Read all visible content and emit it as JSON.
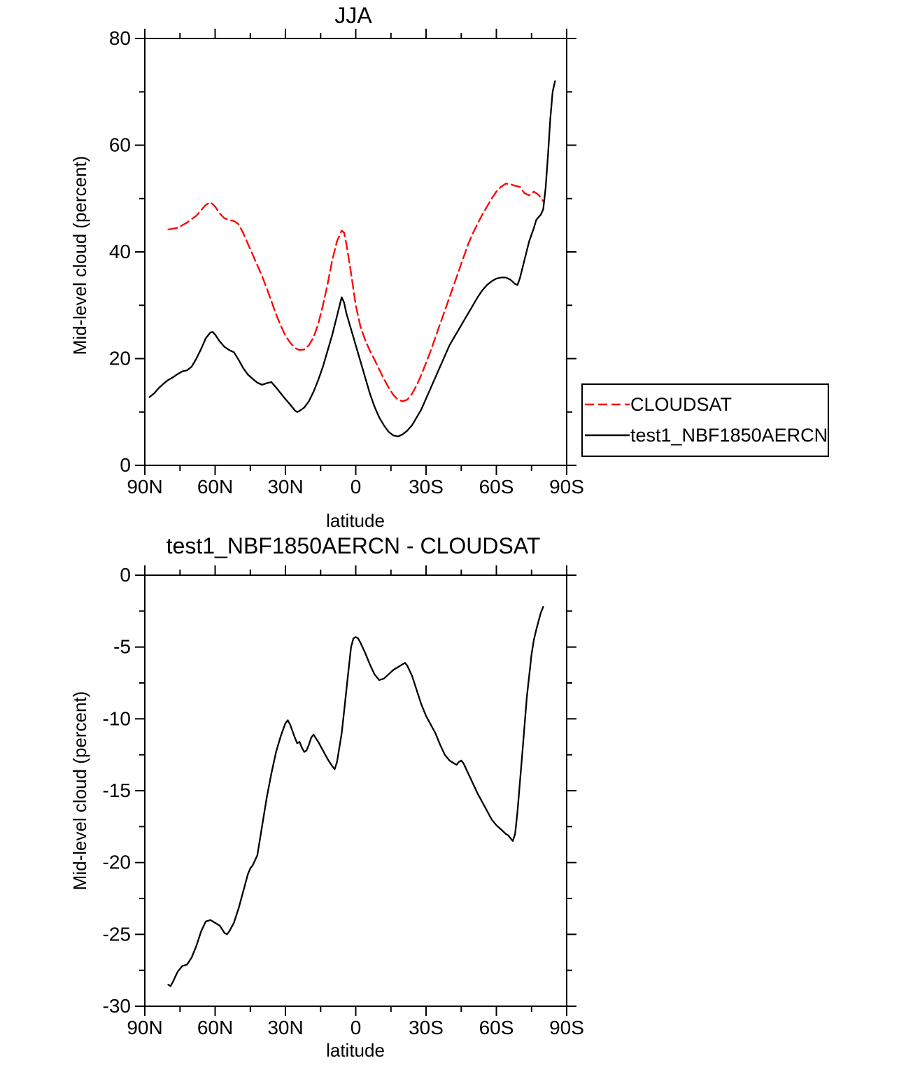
{
  "figure": {
    "background": "#ffffff",
    "frame_color": "#000000"
  },
  "chart_data": [
    {
      "type": "line",
      "title": "JJA",
      "xlabel": "latitude",
      "ylabel": "Mid-level cloud (percent)",
      "xlim": [
        90,
        -90
      ],
      "ylim": [
        0,
        80
      ],
      "grid": false,
      "xticks": {
        "values": [
          90,
          60,
          30,
          0,
          -30,
          -60,
          -90
        ],
        "labels": [
          "90N",
          "60N",
          "30N",
          "0",
          "30S",
          "60S",
          "90S"
        ],
        "minor": [
          75,
          45,
          15,
          -15,
          -45,
          -75
        ]
      },
      "yticks": {
        "values": [
          0,
          20,
          40,
          60,
          80
        ],
        "labels": [
          "0",
          "20",
          "40",
          "60",
          "80"
        ],
        "minor": [
          10,
          30,
          50,
          70
        ]
      },
      "legend": {
        "position": "right-outside",
        "border": true,
        "entries": [
          "CLOUDSAT",
          "test1_NBF1850AERCN"
        ]
      },
      "series": [
        {
          "name": "CLOUDSAT",
          "color": "#ff0000",
          "dash": true,
          "x": [
            80,
            76,
            72,
            68,
            66,
            64,
            62,
            60,
            58,
            56,
            54,
            52,
            50,
            48,
            46,
            44,
            42,
            40,
            38,
            36,
            34,
            32,
            30,
            28,
            26,
            24,
            22,
            20,
            18,
            16,
            14,
            12,
            10,
            8,
            6,
            5,
            4,
            2,
            0,
            -2,
            -4,
            -6,
            -8,
            -10,
            -12,
            -14,
            -16,
            -18,
            -20,
            -22,
            -24,
            -26,
            -28,
            -30,
            -32,
            -34,
            -36,
            -38,
            -40,
            -42,
            -44,
            -46,
            -48,
            -50,
            -52,
            -54,
            -56,
            -58,
            -60,
            -62,
            -64,
            -66,
            -68,
            -70,
            -72,
            -74,
            -76,
            -78,
            -80
          ],
          "y": [
            44.2,
            44.5,
            45.5,
            46.8,
            47.8,
            48.8,
            49.3,
            48.5,
            47.2,
            46.3,
            46.0,
            45.8,
            45.2,
            43.5,
            41.5,
            39.5,
            37.5,
            35.5,
            33.2,
            30.8,
            28.3,
            26.2,
            24.3,
            23.0,
            22.0,
            21.6,
            21.7,
            22.5,
            24.0,
            26.5,
            30.0,
            34.0,
            38.5,
            42.0,
            44.0,
            43.6,
            41.5,
            36.0,
            30.0,
            26.0,
            23.5,
            21.5,
            19.8,
            18.0,
            16.2,
            14.6,
            13.2,
            12.3,
            12.0,
            12.3,
            13.4,
            15.0,
            17.0,
            19.2,
            21.5,
            24.0,
            26.5,
            29.0,
            31.5,
            34.0,
            36.5,
            39.0,
            41.5,
            43.5,
            45.3,
            47.0,
            48.5,
            50.0,
            51.3,
            52.2,
            52.8,
            52.7,
            52.4,
            52.2,
            51.0,
            50.6,
            51.3,
            50.7,
            49.5
          ]
        },
        {
          "name": "test1_NBF1850AERCN",
          "color": "#000000",
          "dash": false,
          "x": [
            88,
            86,
            84,
            82,
            80,
            78,
            76,
            74,
            72,
            70,
            68,
            66,
            64,
            62,
            61,
            60,
            58,
            56,
            54,
            52,
            50,
            48,
            46,
            44,
            42,
            40,
            38,
            36,
            34,
            32,
            30,
            28,
            26,
            25,
            24,
            22,
            20,
            18,
            16,
            14,
            12,
            10,
            8,
            6,
            5,
            4,
            2,
            0,
            -2,
            -4,
            -6,
            -8,
            -10,
            -12,
            -14,
            -16,
            -18,
            -20,
            -22,
            -24,
            -26,
            -28,
            -30,
            -32,
            -34,
            -36,
            -38,
            -40,
            -42,
            -44,
            -46,
            -48,
            -50,
            -52,
            -54,
            -56,
            -58,
            -60,
            -62,
            -64,
            -66,
            -68,
            -69,
            -70,
            -72,
            -74,
            -76,
            -77,
            -78,
            -79,
            -80,
            -81,
            -82,
            -83,
            -84,
            -85
          ],
          "y": [
            12.8,
            13.5,
            14.5,
            15.3,
            16.0,
            16.5,
            17.1,
            17.6,
            17.8,
            18.5,
            20.0,
            21.8,
            23.8,
            24.9,
            25.0,
            24.5,
            23.2,
            22.2,
            21.6,
            21.2,
            19.8,
            18.2,
            17.0,
            16.2,
            15.5,
            15.1,
            15.4,
            15.6,
            14.6,
            13.5,
            12.4,
            11.4,
            10.3,
            10.0,
            10.2,
            10.8,
            12.0,
            13.8,
            16.0,
            18.5,
            21.5,
            24.5,
            28.0,
            31.5,
            30.5,
            28.5,
            25.5,
            22.5,
            19.5,
            16.5,
            13.5,
            11.0,
            9.0,
            7.5,
            6.3,
            5.6,
            5.4,
            5.8,
            6.5,
            7.5,
            9.0,
            10.5,
            12.5,
            14.5,
            16.5,
            18.5,
            20.5,
            22.5,
            24.0,
            25.5,
            27.0,
            28.5,
            30.0,
            31.5,
            32.8,
            33.8,
            34.5,
            35.0,
            35.2,
            35.2,
            34.8,
            34.0,
            33.8,
            35.0,
            38.5,
            42.0,
            44.5,
            46.0,
            46.5,
            47.0,
            48.0,
            52.0,
            58.0,
            65.0,
            70.0,
            72.0
          ]
        }
      ]
    },
    {
      "type": "line",
      "title": "test1_NBF1850AERCN - CLOUDSAT",
      "xlabel": "latitude",
      "ylabel": "Mid-level cloud (percent)",
      "xlim": [
        90,
        -90
      ],
      "ylim": [
        -30,
        0
      ],
      "grid": false,
      "xticks": {
        "values": [
          90,
          60,
          30,
          0,
          -30,
          -60,
          -90
        ],
        "labels": [
          "90N",
          "60N",
          "30N",
          "0",
          "30S",
          "60S",
          "90S"
        ],
        "minor": [
          75,
          45,
          15,
          -15,
          -45,
          -75
        ]
      },
      "yticks": {
        "values": [
          0,
          -5,
          -10,
          -15,
          -20,
          -25,
          -30
        ],
        "labels": [
          "0",
          "-5",
          "-10",
          "-15",
          "-20",
          "-25",
          "-30"
        ],
        "minor": [
          -2.5,
          -7.5,
          -12.5,
          -17.5,
          -22.5,
          -27.5
        ]
      },
      "series": [
        {
          "name": "test1_NBF1850AERCN - CLOUDSAT",
          "color": "#000000",
          "dash": false,
          "x": [
            80,
            79,
            78,
            76,
            74,
            72,
            70,
            68,
            66,
            64,
            62,
            60,
            58,
            56,
            55,
            54,
            52,
            50,
            48,
            46,
            45,
            44,
            42,
            40,
            38,
            36,
            34,
            32,
            30,
            29,
            28,
            26,
            25,
            24,
            23,
            22,
            21,
            20,
            19,
            18,
            16,
            14,
            12,
            10,
            9,
            8,
            6,
            5,
            4,
            3,
            2,
            1,
            0,
            -1,
            -2,
            -4,
            -6,
            -8,
            -10,
            -12,
            -14,
            -16,
            -18,
            -20,
            -21,
            -22,
            -24,
            -26,
            -28,
            -30,
            -32,
            -34,
            -36,
            -38,
            -40,
            -42,
            -43,
            -44,
            -45,
            -46,
            -48,
            -50,
            -52,
            -54,
            -56,
            -58,
            -60,
            -62,
            -64,
            -65,
            -66,
            -67,
            -68,
            -69,
            -70,
            -71,
            -72,
            -73,
            -74,
            -75,
            -76,
            -77,
            -78,
            -79,
            -80
          ],
          "y": [
            -28.5,
            -28.6,
            -28.3,
            -27.6,
            -27.2,
            -27.1,
            -26.6,
            -25.8,
            -24.8,
            -24.1,
            -24.0,
            -24.2,
            -24.4,
            -24.9,
            -25.0,
            -24.8,
            -24.2,
            -23.2,
            -22.0,
            -20.8,
            -20.4,
            -20.2,
            -19.5,
            -17.5,
            -15.5,
            -13.8,
            -12.3,
            -11.2,
            -10.3,
            -10.1,
            -10.4,
            -11.3,
            -11.7,
            -11.6,
            -12.0,
            -12.3,
            -12.2,
            -11.8,
            -11.3,
            -11.1,
            -11.6,
            -12.2,
            -12.8,
            -13.3,
            -13.5,
            -13.0,
            -11.0,
            -9.5,
            -8.0,
            -6.5,
            -5.0,
            -4.4,
            -4.3,
            -4.4,
            -4.7,
            -5.4,
            -6.2,
            -6.9,
            -7.3,
            -7.2,
            -6.9,
            -6.6,
            -6.4,
            -6.2,
            -6.1,
            -6.3,
            -7.0,
            -8.0,
            -9.0,
            -9.8,
            -10.4,
            -11.0,
            -11.8,
            -12.5,
            -12.9,
            -13.1,
            -13.2,
            -13.0,
            -12.9,
            -13.1,
            -13.8,
            -14.5,
            -15.2,
            -15.8,
            -16.4,
            -17.0,
            -17.4,
            -17.7,
            -18.0,
            -18.1,
            -18.3,
            -18.5,
            -18.0,
            -16.5,
            -14.5,
            -12.5,
            -10.5,
            -8.5,
            -7.0,
            -5.5,
            -4.5,
            -3.8,
            -3.2,
            -2.6,
            -2.2
          ]
        }
      ]
    }
  ]
}
